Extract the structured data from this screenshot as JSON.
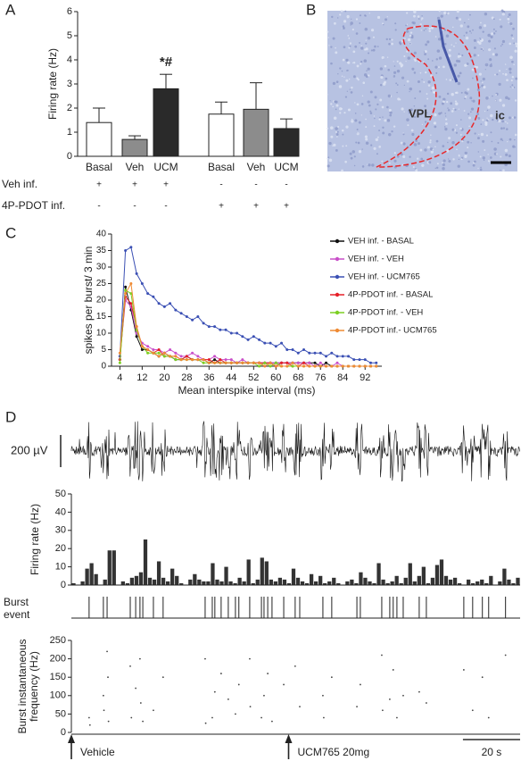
{
  "chart_data": [
    {
      "type": "bar",
      "panel_label": "A",
      "ylabel": "Firing rate (Hz)",
      "categories": [
        "Basal",
        "Veh",
        "UCM",
        "Basal",
        "Veh",
        "UCM"
      ],
      "values": [
        1.4,
        0.7,
        2.8,
        1.75,
        1.95,
        1.15
      ],
      "errors": [
        0.6,
        0.15,
        0.6,
        0.5,
        1.1,
        0.4
      ],
      "colors": [
        "#ffffff",
        "#8c8c8c",
        "#2a2a2a",
        "#ffffff",
        "#8c8c8c",
        "#2a2a2a"
      ],
      "ylim": [
        0,
        6
      ],
      "yticks": [
        0,
        1,
        2,
        3,
        4,
        5,
        6
      ],
      "annotation": "*#",
      "treatment_rows": [
        {
          "label": "Veh inf.",
          "signs": [
            "+",
            "+",
            "+",
            "-",
            "-",
            "-"
          ]
        },
        {
          "label": "4P-PDOT inf.",
          "signs": [
            "-",
            "-",
            "-",
            "+",
            "+",
            "+"
          ]
        }
      ]
    },
    {
      "type": "image",
      "panel_label": "B",
      "labels": [
        "VPL",
        "ic"
      ]
    },
    {
      "type": "line",
      "panel_label": "C",
      "ylabel": "spikes per burst/ 3 min",
      "xlabel": "Mean interspike interval (ms)",
      "x": [
        4,
        6,
        8,
        10,
        12,
        14,
        16,
        18,
        20,
        22,
        24,
        26,
        28,
        30,
        32,
        34,
        36,
        38,
        40,
        42,
        44,
        46,
        48,
        50,
        52,
        54,
        56,
        58,
        60,
        62,
        64,
        66,
        68,
        70,
        72,
        74,
        76,
        78,
        80,
        82,
        84,
        86,
        88,
        90,
        92,
        94,
        96
      ],
      "xlim": [
        1,
        98
      ],
      "xticks": [
        4,
        12,
        20,
        28,
        36,
        44,
        52,
        60,
        68,
        76,
        84,
        92
      ],
      "ylim": [
        0,
        40
      ],
      "yticks": [
        0,
        5,
        10,
        15,
        20,
        25,
        30,
        35,
        40
      ],
      "series": [
        {
          "name": "VEH inf. - BASAL",
          "color": "#111111",
          "values": [
            2,
            24,
            17,
            9,
            5,
            5,
            4,
            3,
            4,
            3,
            2,
            2,
            3,
            2,
            2,
            2,
            1,
            2,
            1,
            1,
            1,
            1,
            1,
            1,
            1,
            1,
            1,
            1,
            1,
            1,
            1,
            1,
            1,
            1,
            1,
            1,
            0,
            1,
            0,
            0,
            0,
            0,
            0,
            0,
            0,
            0,
            0
          ]
        },
        {
          "name": "VEH inf. - VEH",
          "color": "#c94fc9",
          "values": [
            3,
            20,
            18,
            10,
            7,
            6,
            5,
            5,
            4,
            5,
            4,
            3,
            3,
            4,
            3,
            2,
            2,
            3,
            2,
            2,
            2,
            1,
            2,
            1,
            1,
            1,
            1,
            1,
            1,
            1,
            1,
            1,
            1,
            1,
            1,
            0,
            1,
            0,
            0,
            1,
            0,
            0,
            0,
            0,
            0,
            0,
            0
          ]
        },
        {
          "name": "VEH inf. - UCM765",
          "color": "#3b50b4",
          "values": [
            3,
            35,
            36,
            28,
            25,
            22,
            21,
            19,
            18,
            19,
            17,
            16,
            15,
            14,
            15,
            13,
            12,
            12,
            11,
            11,
            10,
            10,
            9,
            8,
            9,
            8,
            7,
            7,
            6,
            7,
            5,
            5,
            4,
            5,
            4,
            4,
            4,
            3,
            4,
            3,
            3,
            3,
            2,
            2,
            2,
            1,
            1
          ]
        },
        {
          "name": "4P-PDOT inf. - BASAL",
          "color": "#e62028",
          "values": [
            2,
            21,
            19,
            12,
            6,
            5,
            4,
            5,
            3,
            3,
            3,
            2,
            3,
            2,
            2,
            2,
            2,
            1,
            2,
            1,
            1,
            1,
            1,
            1,
            1,
            1,
            1,
            1,
            0,
            1,
            1,
            0,
            0,
            1,
            0,
            0,
            0,
            0,
            0,
            0,
            0,
            0,
            0,
            0,
            0,
            0,
            0
          ]
        },
        {
          "name": "4P-PDOT inf. - VEH",
          "color": "#7ccf22",
          "values": [
            1,
            23,
            22,
            11,
            6,
            4,
            4,
            4,
            3,
            3,
            2,
            2,
            2,
            2,
            2,
            1,
            1,
            1,
            1,
            1,
            1,
            1,
            1,
            1,
            1,
            0,
            1,
            0,
            1,
            0,
            0,
            0,
            0,
            0,
            0,
            0,
            0,
            0,
            0,
            0,
            0,
            0,
            0,
            0,
            0,
            0,
            0
          ]
        },
        {
          "name": "4P-PDOT inf.-  UCM765",
          "color": "#ef8a33",
          "values": [
            4,
            22,
            25,
            12,
            6,
            5,
            4,
            3,
            4,
            3,
            3,
            2,
            2,
            2,
            2,
            2,
            1,
            1,
            1,
            1,
            1,
            1,
            1,
            1,
            1,
            1,
            0,
            1,
            0,
            0,
            0,
            1,
            0,
            0,
            0,
            0,
            0,
            0,
            0,
            0,
            0,
            0,
            0,
            0,
            0,
            0,
            0
          ]
        }
      ]
    },
    {
      "type": "trace",
      "panel_label": "D",
      "scale_label": "200 µV"
    },
    {
      "type": "bar",
      "ylabel": "Firing rate (Hz)",
      "color": "#333333",
      "values": [
        1,
        0,
        2,
        9,
        12,
        6,
        0,
        3,
        19,
        19,
        0,
        2,
        1,
        4,
        5,
        7,
        25,
        4,
        3,
        13,
        4,
        2,
        9,
        5,
        1,
        0,
        3,
        6,
        3,
        2,
        2,
        12,
        3,
        2,
        10,
        2,
        1,
        4,
        2,
        14,
        1,
        3,
        15,
        13,
        3,
        2,
        4,
        3,
        1,
        9,
        4,
        2,
        1,
        6,
        2,
        5,
        1,
        2,
        4,
        1,
        0,
        2,
        3,
        1,
        7,
        4,
        2,
        1,
        12,
        3,
        1,
        2,
        5,
        1,
        4,
        12,
        2,
        5,
        10,
        1,
        4,
        11,
        14,
        5,
        3,
        4,
        1,
        0,
        3,
        1,
        2,
        3,
        1,
        5,
        0,
        2,
        9,
        3,
        1,
        4
      ],
      "ylim": [
        0,
        50
      ],
      "yticks": [
        0,
        10,
        20,
        30,
        40,
        50
      ]
    },
    {
      "type": "event",
      "ylabel": [
        "Burst",
        "event"
      ],
      "xlim": [
        0,
        157
      ],
      "x": [
        6.2,
        11.2,
        12.5,
        20.6,
        22.5,
        24.0,
        25.0,
        28.7,
        32.1,
        46.8,
        49.3,
        50.2,
        52.4,
        54.9,
        57.4,
        58.6,
        62.4,
        66.5,
        67.4,
        68.7,
        70.2,
        74.3,
        78.3,
        79.9,
        88.0,
        91.1,
        99.9,
        101.1,
        108.6,
        111.4,
        112.6,
        113.9,
        116.1,
        121.7,
        124.2,
        137.3,
        140.4,
        143.8,
        146.0,
        151.9
      ]
    },
    {
      "type": "scatter",
      "ylabel": [
        "Burst instantaneous",
        "frequency (Hz)"
      ],
      "xlim": [
        0,
        157
      ],
      "ylim": [
        0,
        250
      ],
      "yticks": [
        0,
        50,
        100,
        150,
        200,
        250
      ],
      "x": [
        6.2,
        6.5,
        11.2,
        11.4,
        12.5,
        12.8,
        13,
        20.6,
        21,
        22.5,
        24,
        24.3,
        25,
        28.7,
        32.1,
        46.8,
        47,
        49.3,
        50.2,
        52.4,
        54.9,
        57.4,
        58.6,
        62.4,
        62.6,
        66.5,
        67.4,
        68.7,
        70.2,
        74.3,
        78.3,
        79.9,
        88,
        88.3,
        91.1,
        99.9,
        101.1,
        108.6,
        108.9,
        111.4,
        112.6,
        113.9,
        116.1,
        121.7,
        124.2,
        137.3,
        140.4,
        143.8,
        146,
        151.9
      ],
      "y": [
        40,
        20,
        100,
        60,
        220,
        150,
        30,
        180,
        40,
        120,
        200,
        80,
        30,
        60,
        150,
        200,
        25,
        40,
        110,
        160,
        90,
        50,
        130,
        200,
        70,
        40,
        100,
        160,
        30,
        130,
        180,
        70,
        100,
        40,
        150,
        70,
        130,
        210,
        60,
        90,
        170,
        40,
        100,
        110,
        80,
        170,
        60,
        150,
        40,
        210
      ],
      "annotations": [
        {
          "text": "Vehicle",
          "x": 0
        },
        {
          "text": "UCM765 20mg",
          "x": 76
        }
      ],
      "scale_bar": {
        "value": 20,
        "label": "20 s"
      }
    }
  ]
}
